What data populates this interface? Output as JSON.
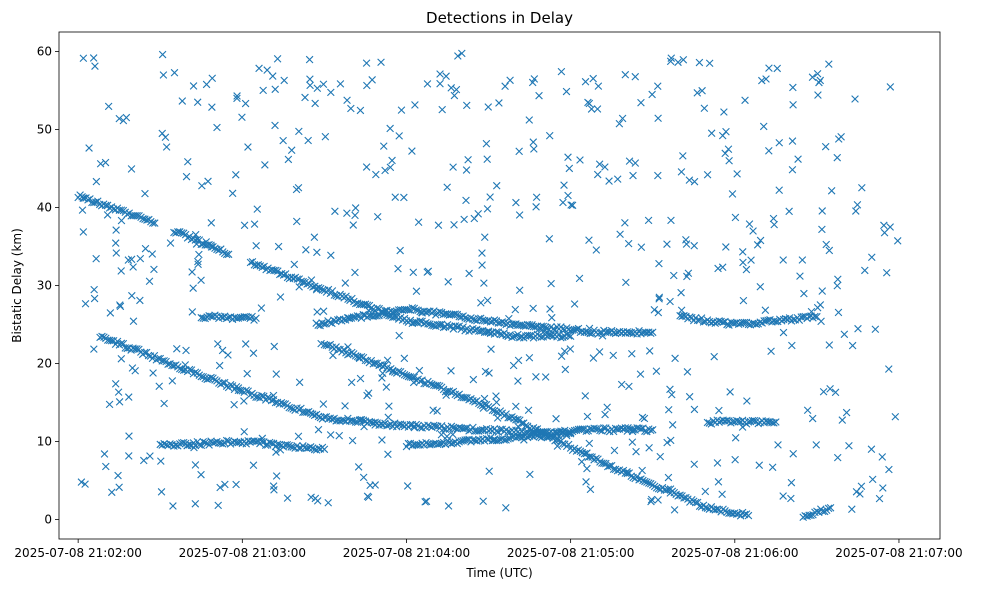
{
  "chart_data": {
    "type": "scatter",
    "title": "Detections in Delay",
    "xlabel": "Time (UTC)",
    "ylabel": "Bistatic Delay (km)",
    "marker": "x",
    "color": "#1f77b4",
    "grid": false,
    "legend": "none",
    "xlim": [
      "2025-07-08 21:01:53",
      "2025-07-08 21:07:15"
    ],
    "ylim": [
      -2.5,
      62.5
    ],
    "xticks": [
      "2025-07-08 21:02:00",
      "2025-07-08 21:03:00",
      "2025-07-08 21:04:00",
      "2025-07-08 21:05:00",
      "2025-07-08 21:06:00",
      "2025-07-08 21:07:00"
    ],
    "yticks": [
      0,
      10,
      20,
      30,
      40,
      50,
      60
    ],
    "tracks": [
      {
        "points": [
          [
            "2025-07-08 21:02:00",
            41.5
          ],
          [
            "2025-07-08 21:02:28",
            38.0
          ]
        ]
      },
      {
        "points": [
          [
            "2025-07-08 21:02:35",
            37.0
          ],
          [
            "2025-07-08 21:02:55",
            34.0
          ]
        ]
      },
      {
        "points": [
          [
            "2025-07-08 21:03:03",
            33.0
          ],
          [
            "2025-07-08 21:04:00",
            25.5
          ],
          [
            "2025-07-08 21:04:40",
            23.5
          ],
          [
            "2025-07-08 21:05:00",
            23.5
          ]
        ]
      },
      {
        "points": [
          [
            "2025-07-08 21:02:08",
            23.5
          ],
          [
            "2025-07-08 21:02:30",
            20.5
          ],
          [
            "2025-07-08 21:03:00",
            16.5
          ],
          [
            "2025-07-08 21:03:30",
            13.0
          ],
          [
            "2025-07-08 21:04:00",
            12.0
          ],
          [
            "2025-07-08 21:04:30",
            11.5
          ],
          [
            "2025-07-08 21:04:50",
            11.0
          ],
          [
            "2025-07-08 21:05:10",
            11.5
          ],
          [
            "2025-07-08 21:05:30",
            11.5
          ]
        ]
      },
      {
        "points": [
          [
            "2025-07-08 21:03:30",
            22.5
          ],
          [
            "2025-07-08 21:04:00",
            18.5
          ],
          [
            "2025-07-08 21:04:30",
            14.5
          ],
          [
            "2025-07-08 21:04:50",
            11.0
          ],
          [
            "2025-07-08 21:05:10",
            7.5
          ],
          [
            "2025-07-08 21:05:30",
            4.5
          ],
          [
            "2025-07-08 21:05:50",
            1.5
          ],
          [
            "2025-07-08 21:06:05",
            0.5
          ]
        ]
      },
      {
        "points": [
          [
            "2025-07-08 21:03:27",
            25.0
          ],
          [
            "2025-07-08 21:04:00",
            27.0
          ],
          [
            "2025-07-08 21:04:40",
            25.0
          ],
          [
            "2025-07-08 21:05:10",
            24.0
          ],
          [
            "2025-07-08 21:05:30",
            24.0
          ]
        ]
      },
      {
        "points": [
          [
            "2025-07-08 21:02:30",
            9.5
          ],
          [
            "2025-07-08 21:03:00",
            10.0
          ],
          [
            "2025-07-08 21:03:30",
            9.0
          ]
        ]
      },
      {
        "points": [
          [
            "2025-07-08 21:04:00",
            9.5
          ],
          [
            "2025-07-08 21:04:40",
            10.5
          ],
          [
            "2025-07-08 21:05:00",
            11.0
          ]
        ]
      },
      {
        "points": [
          [
            "2025-07-08 21:05:40",
            26.0
          ],
          [
            "2025-07-08 21:06:00",
            25.0
          ],
          [
            "2025-07-08 21:06:30",
            26.0
          ]
        ]
      },
      {
        "points": [
          [
            "2025-07-08 21:05:50",
            12.5
          ],
          [
            "2025-07-08 21:06:15",
            12.5
          ]
        ]
      },
      {
        "points": [
          [
            "2025-07-08 21:02:45",
            26.0
          ],
          [
            "2025-07-08 21:03:05",
            25.8
          ]
        ]
      },
      {
        "points": [
          [
            "2025-07-08 21:06:25",
            0.5
          ],
          [
            "2025-07-08 21:06:35",
            1.5
          ]
        ]
      }
    ]
  }
}
